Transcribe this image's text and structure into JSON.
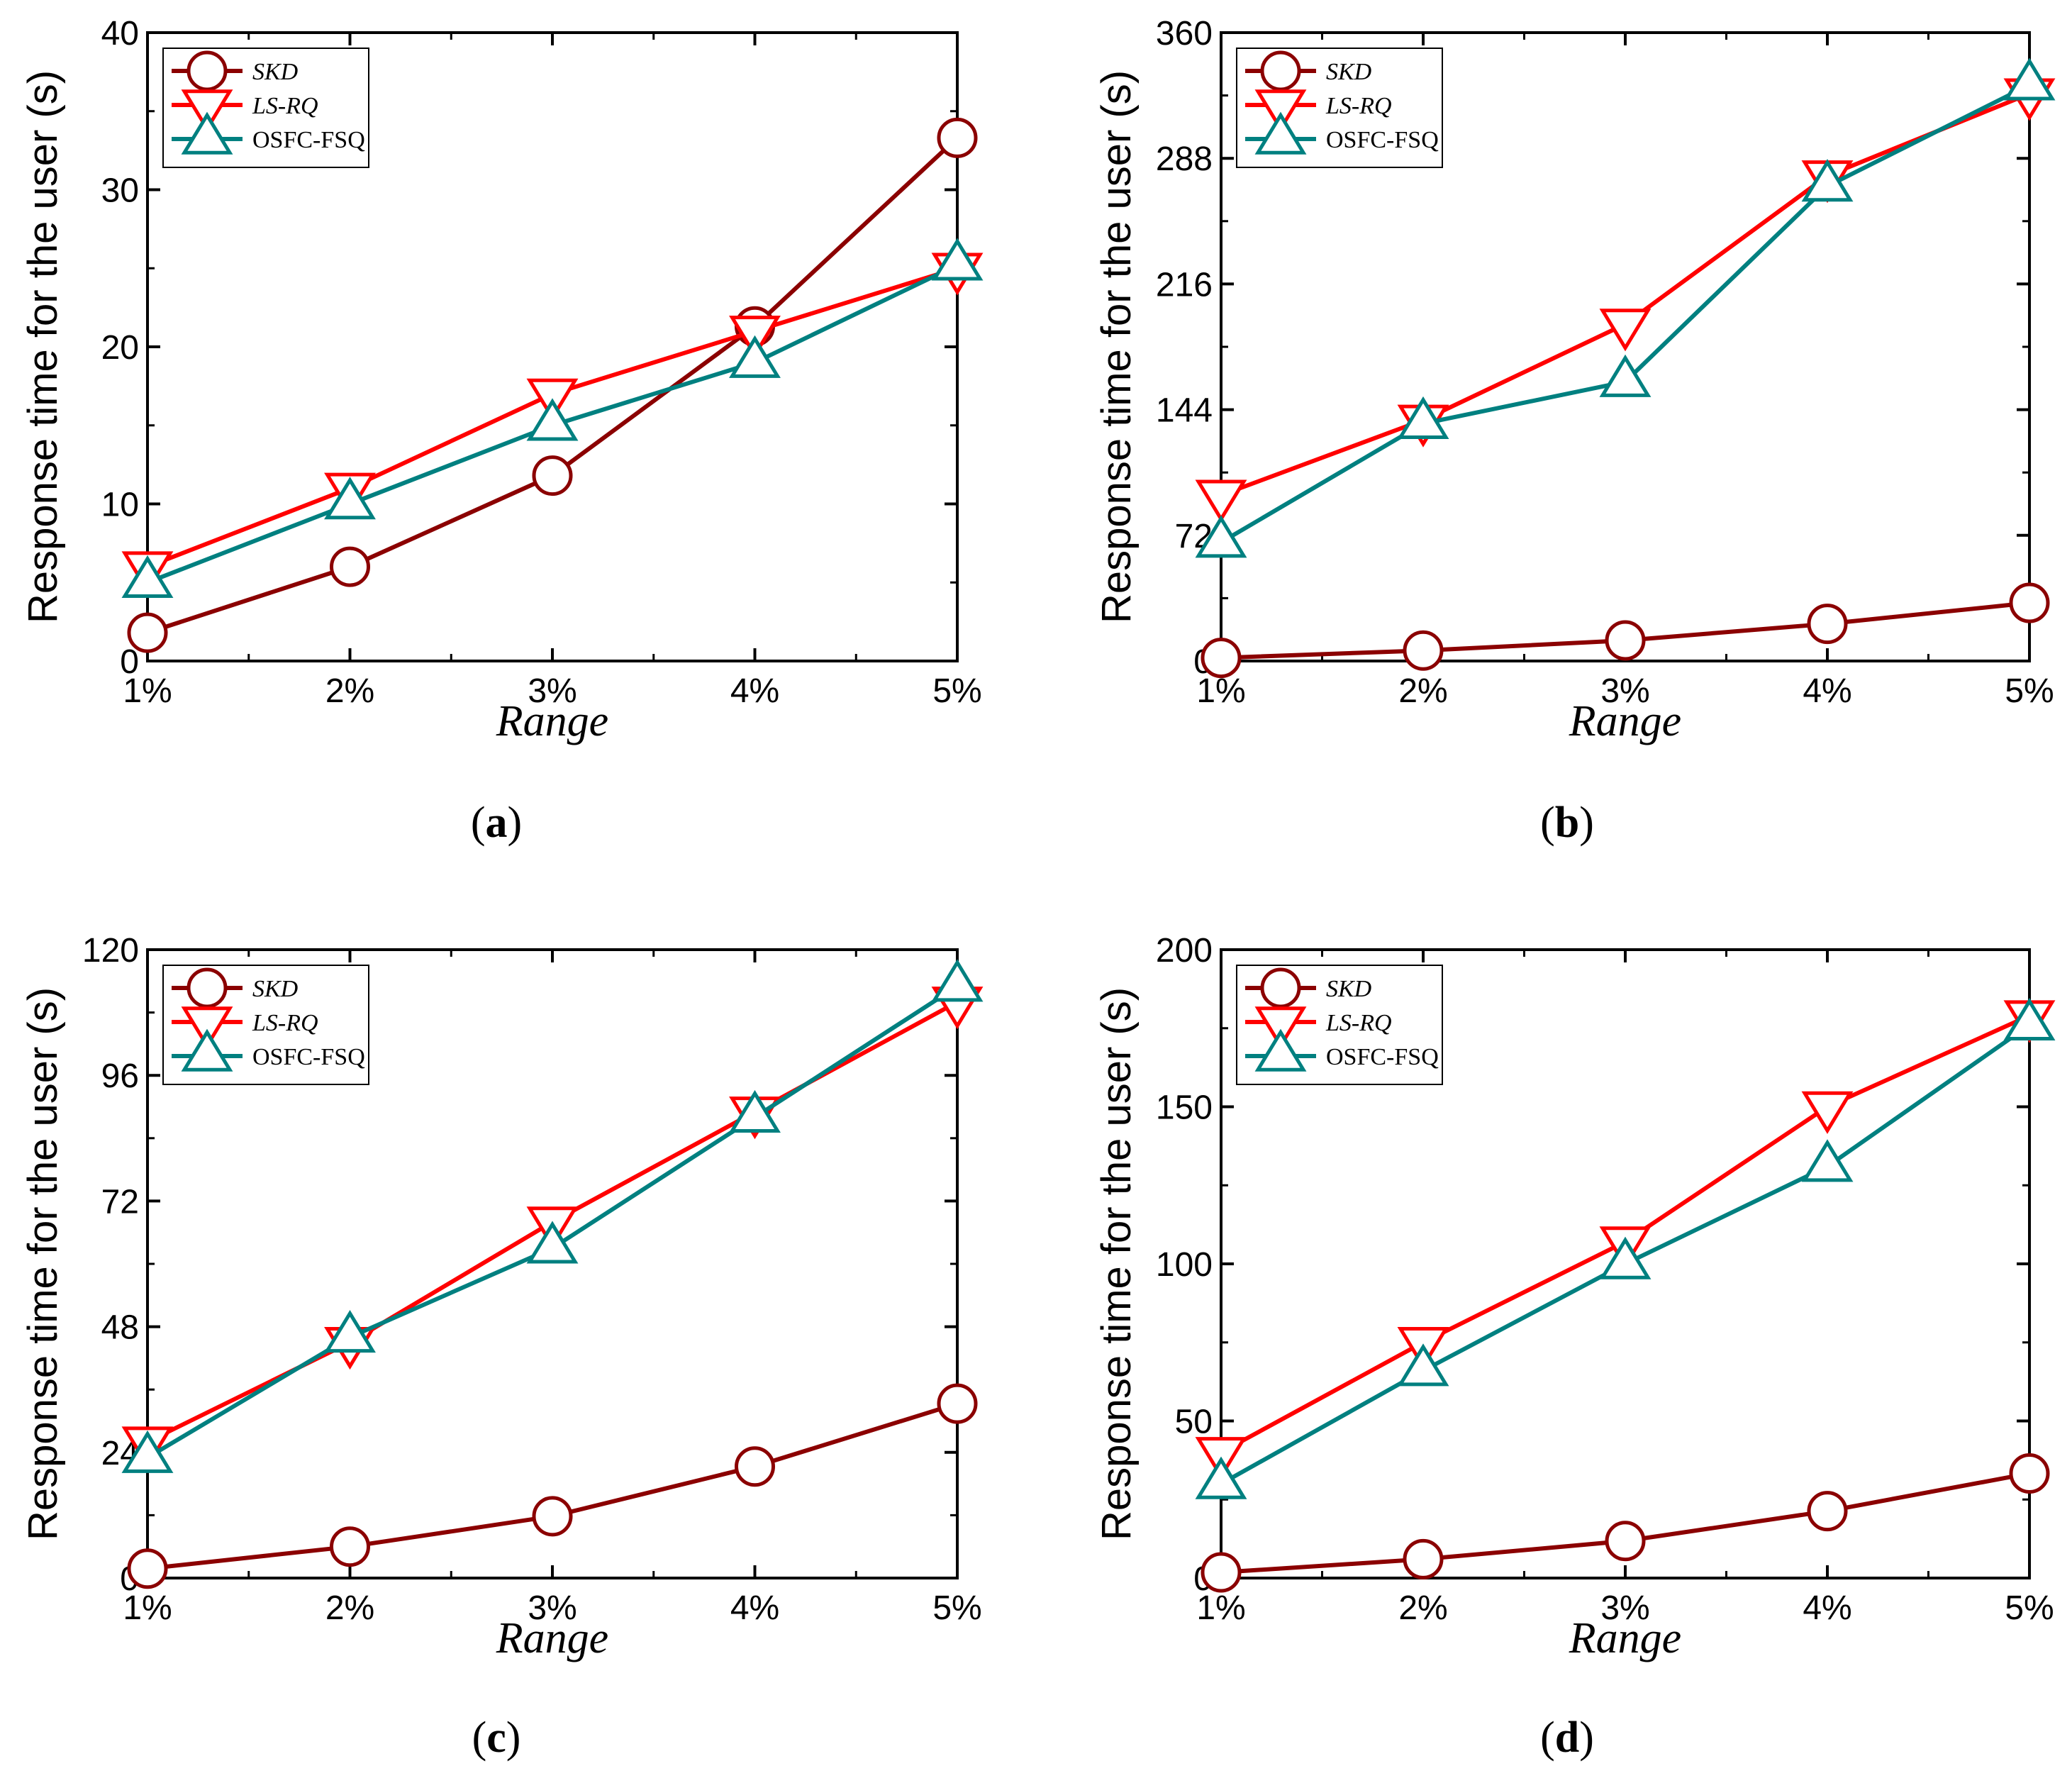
{
  "chart_data": [
    {
      "type": "line",
      "caption_letter": "a",
      "xlabel": "Range",
      "ylabel": "Response time for the user (s)",
      "categories": [
        "1%",
        "2%",
        "3%",
        "4%",
        "5%"
      ],
      "ylim": [
        0,
        40
      ],
      "yticks": [
        "0",
        "10",
        "20",
        "30",
        "40"
      ],
      "legend_position": "top-left",
      "series": [
        {
          "name": "SKD",
          "marker": "circle",
          "color": "#8b0000",
          "values": [
            1.8,
            6.0,
            11.8,
            21.3,
            33.3
          ]
        },
        {
          "name": "LS-RQ",
          "marker": "triangle-down",
          "color": "#ff0000",
          "values": [
            6.0,
            11.0,
            17.0,
            21.0,
            25.0
          ]
        },
        {
          "name": "OSFC-FSQ",
          "marker": "triangle-up",
          "color": "#008080",
          "values": [
            5.0,
            10.0,
            15.0,
            19.0,
            25.2
          ]
        }
      ]
    },
    {
      "type": "line",
      "caption_letter": "b",
      "xlabel": "Range",
      "ylabel": "Response time for the user (s)",
      "categories": [
        "1%",
        "2%",
        "3%",
        "4%",
        "5%"
      ],
      "ylim": [
        0,
        360
      ],
      "yticks": [
        "0",
        "72",
        "144",
        "216",
        "288",
        "360"
      ],
      "legend_position": "top-left",
      "series": [
        {
          "name": "SKD",
          "marker": "circle",
          "color": "#8b0000",
          "values": [
            1.8,
            6.0,
            11.8,
            21.3,
            33.3
          ]
        },
        {
          "name": "LS-RQ",
          "marker": "triangle-down",
          "color": "#ff0000",
          "values": [
            95,
            138,
            193,
            278,
            325
          ]
        },
        {
          "name": "OSFC-FSQ",
          "marker": "triangle-up",
          "color": "#008080",
          "values": [
            68,
            136,
            160,
            272,
            330
          ]
        }
      ]
    },
    {
      "type": "line",
      "caption_letter": "c",
      "xlabel": "Range",
      "ylabel": "Response time for the user (s)",
      "categories": [
        "1%",
        "2%",
        "3%",
        "4%",
        "5%"
      ],
      "ylim": [
        0,
        120
      ],
      "yticks": [
        "0",
        "24",
        "48",
        "72",
        "96",
        "120"
      ],
      "legend_position": "top-left",
      "series": [
        {
          "name": "SKD",
          "marker": "circle",
          "color": "#8b0000",
          "values": [
            1.8,
            6.0,
            11.8,
            21.3,
            33.3
          ]
        },
        {
          "name": "LS-RQ",
          "marker": "triangle-down",
          "color": "#ff0000",
          "values": [
            26,
            45,
            68,
            89,
            110
          ]
        },
        {
          "name": "OSFC-FSQ",
          "marker": "triangle-up",
          "color": "#008080",
          "values": [
            23,
            46,
            63,
            88,
            113
          ]
        }
      ]
    },
    {
      "type": "line",
      "caption_letter": "d",
      "xlabel": "Range",
      "ylabel": "Response time for the user (s)",
      "categories": [
        "1%",
        "2%",
        "3%",
        "4%",
        "5%"
      ],
      "ylim": [
        0,
        200
      ],
      "yticks": [
        "0",
        "50",
        "100",
        "150",
        "200"
      ],
      "legend_position": "top-left",
      "series": [
        {
          "name": "SKD",
          "marker": "circle",
          "color": "#8b0000",
          "values": [
            1.8,
            6.0,
            11.8,
            21.3,
            33.3
          ]
        },
        {
          "name": "LS-RQ",
          "marker": "triangle-down",
          "color": "#ff0000",
          "values": [
            40,
            75,
            107,
            150,
            179
          ]
        },
        {
          "name": "OSFC-FSQ",
          "marker": "triangle-up",
          "color": "#008080",
          "values": [
            30,
            66,
            100,
            131,
            176
          ]
        }
      ]
    }
  ]
}
